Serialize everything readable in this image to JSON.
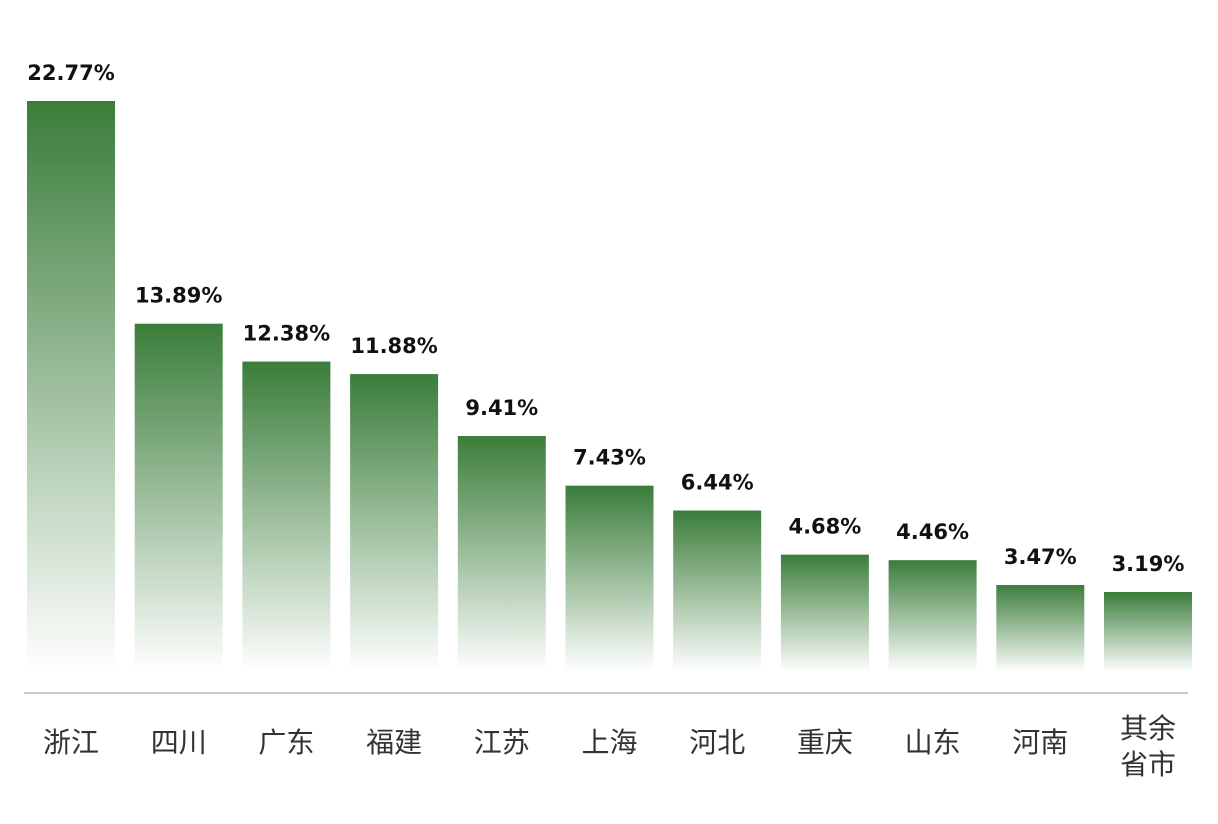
{
  "chart_data": {
    "type": "bar",
    "categories": [
      "浙江",
      "四川",
      "广东",
      "福建",
      "江苏",
      "上海",
      "河北",
      "重庆",
      "山东",
      "河南",
      "其余省市"
    ],
    "values": [
      22.77,
      13.89,
      12.38,
      11.88,
      9.41,
      7.43,
      6.44,
      4.68,
      4.46,
      3.47,
      3.19
    ],
    "value_labels": [
      "22.77%",
      "13.89%",
      "12.38%",
      "11.88%",
      "9.41%",
      "7.43%",
      "6.44%",
      "4.68%",
      "4.46%",
      "3.47%",
      "3.19%"
    ],
    "ylim": [
      0,
      22.77
    ],
    "grid": false,
    "legend": "none",
    "bar_color": "#3a7d3a"
  }
}
